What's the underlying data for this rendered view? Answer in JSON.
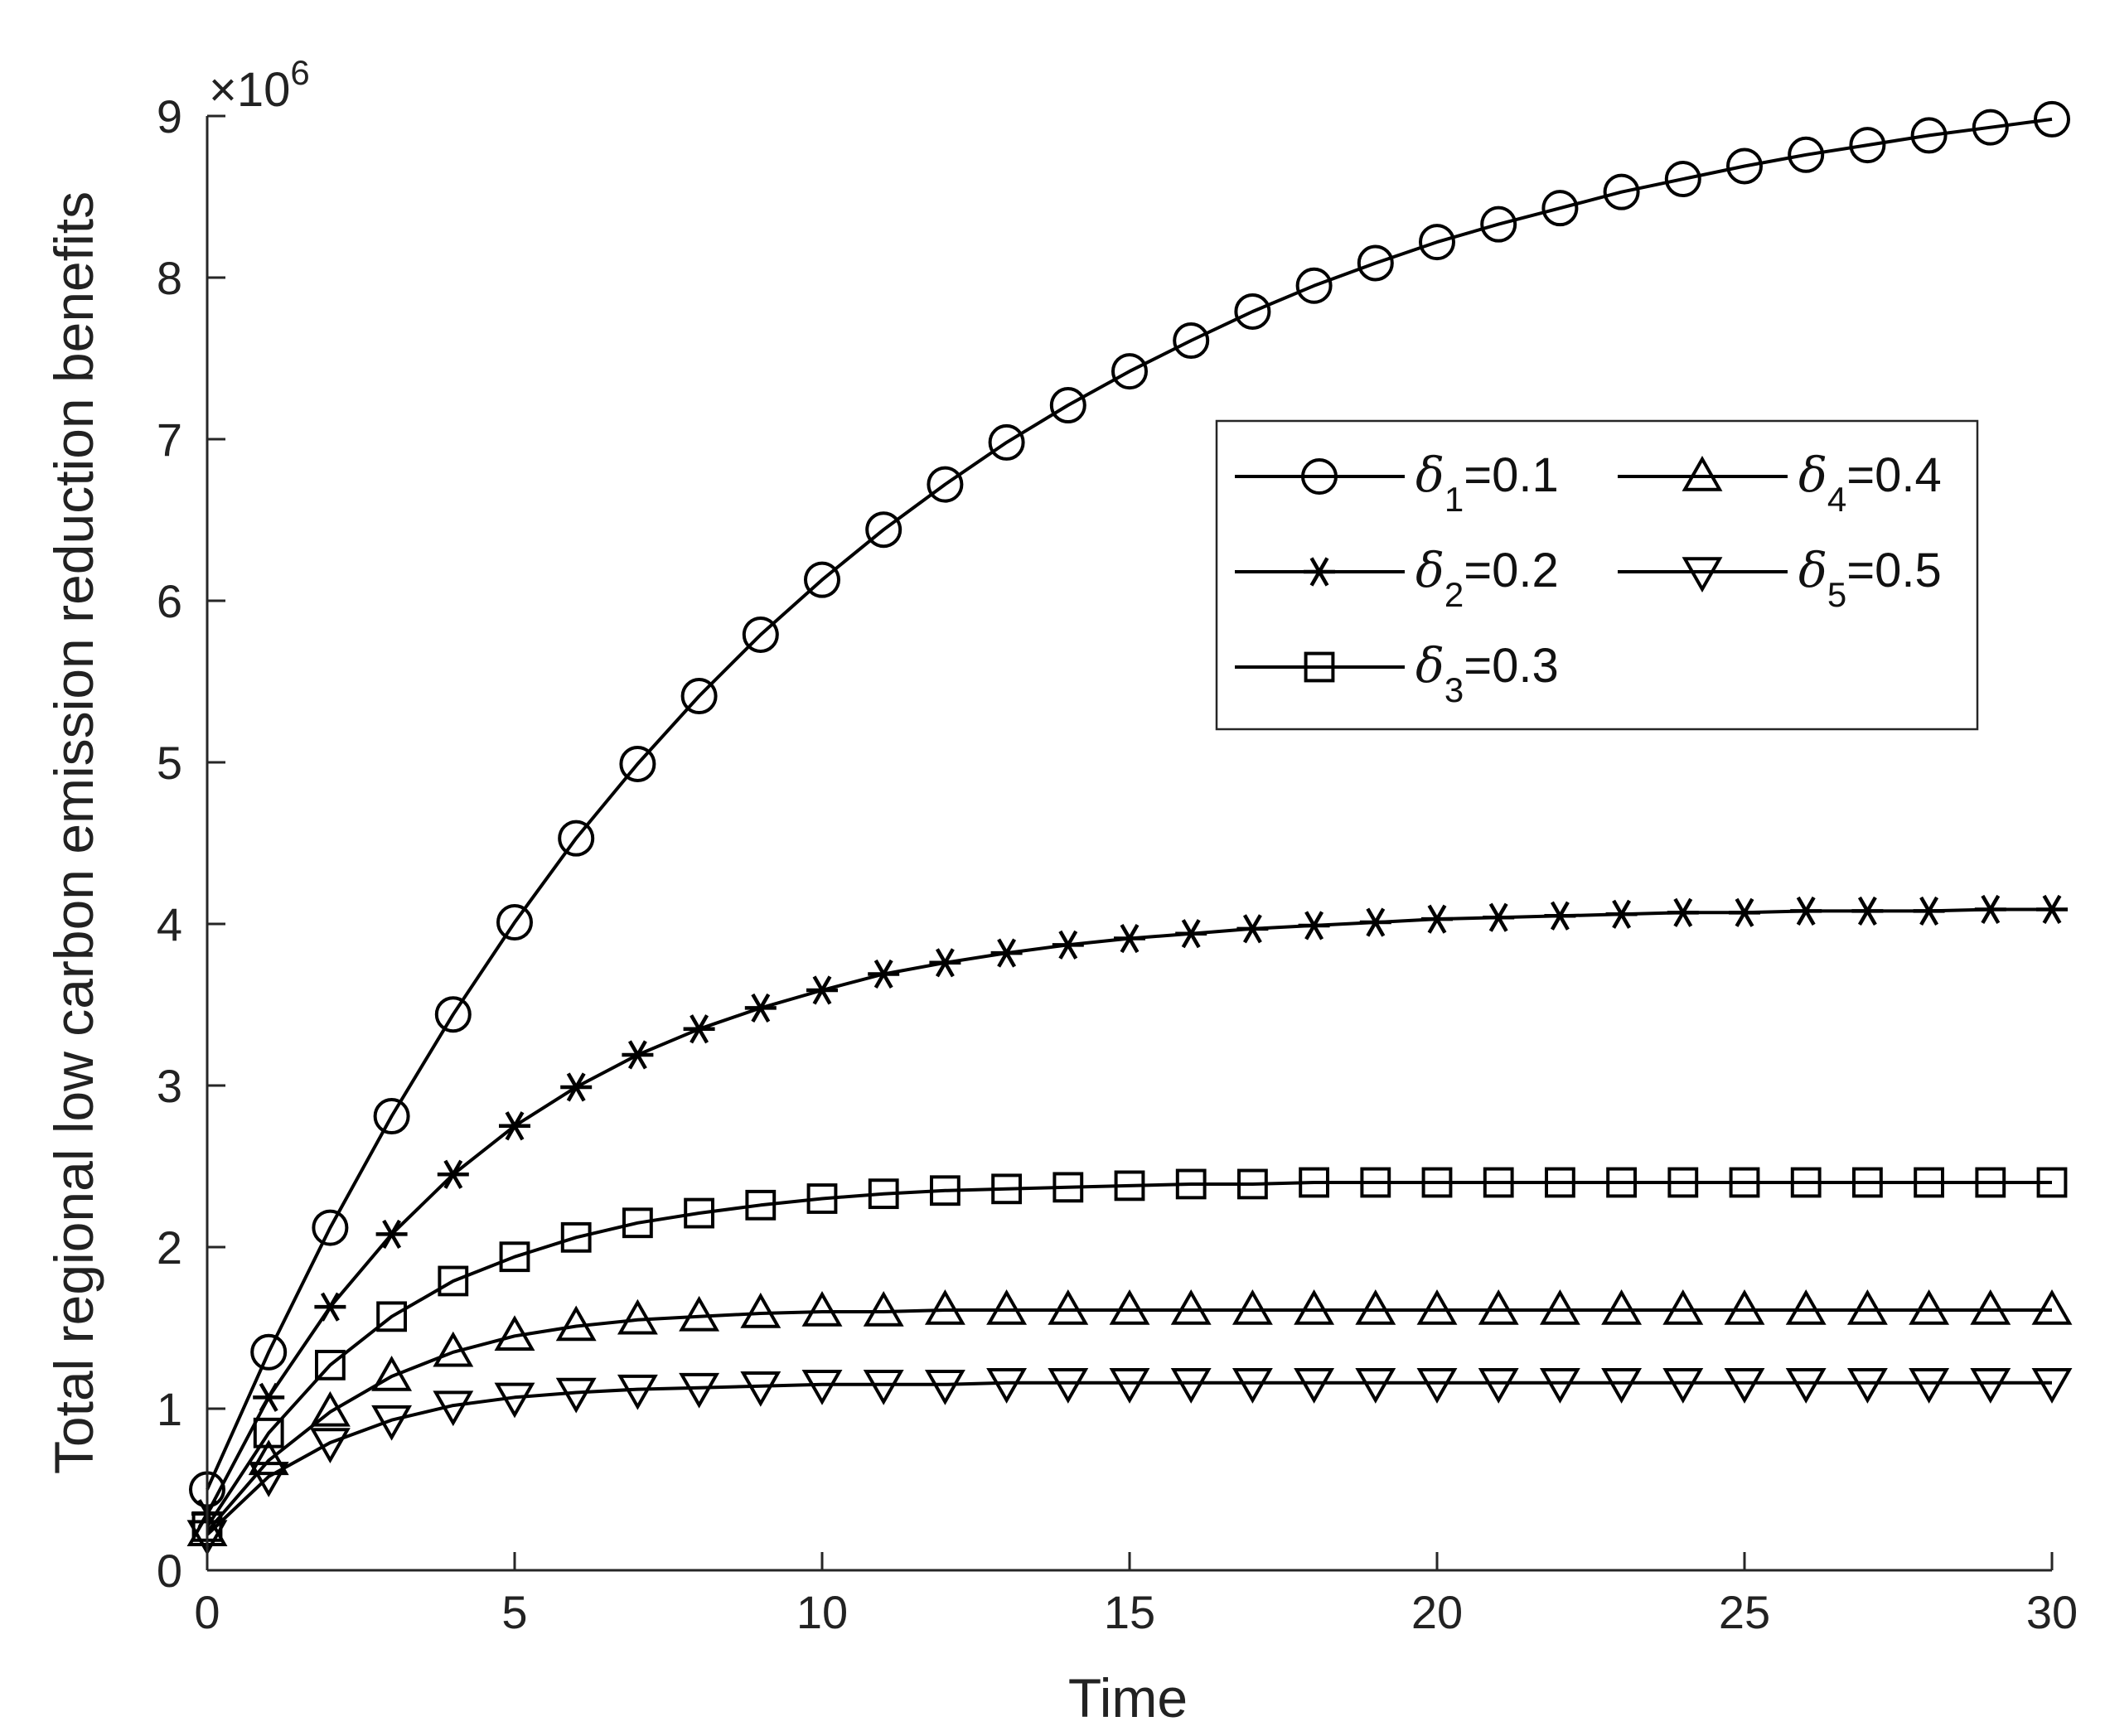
{
  "chart_data": {
    "type": "line",
    "title": "",
    "xlabel": "Time",
    "ylabel": "Total regional low carbon emission reduction benefits",
    "xlim": [
      0,
      30
    ],
    "ylim": [
      0,
      9
    ],
    "xticks": [
      0,
      5,
      10,
      15,
      20,
      25,
      30
    ],
    "yticks": [
      0,
      1,
      2,
      3,
      4,
      5,
      6,
      7,
      8,
      9
    ],
    "x_tick_labels": [
      "0",
      "5",
      "10",
      "15",
      "20",
      "25",
      "30"
    ],
    "y_tick_labels": [
      "0",
      "1",
      "2",
      "3",
      "4",
      "5",
      "6",
      "7",
      "8",
      "9"
    ],
    "y_multiplier": {
      "base": "×10",
      "exponent": "6"
    },
    "grid": false,
    "legend_position": "top-right",
    "x": [
      0,
      1,
      2,
      3,
      4,
      5,
      6,
      7,
      8,
      9,
      10,
      11,
      12,
      13,
      14,
      15,
      16,
      17,
      18,
      19,
      20,
      21,
      22,
      23,
      24,
      25,
      26,
      27,
      28,
      29,
      30
    ],
    "series": [
      {
        "name": "δ1=0.1",
        "symbol": "δ",
        "subscript": "1",
        "value_label": "=0.1",
        "marker": "circle",
        "values": [
          0.5,
          1.35,
          2.12,
          2.81,
          3.44,
          4.01,
          4.53,
          4.99,
          5.41,
          5.79,
          6.13,
          6.44,
          6.72,
          6.98,
          7.21,
          7.42,
          7.61,
          7.79,
          7.95,
          8.09,
          8.22,
          8.33,
          8.43,
          8.53,
          8.61,
          8.69,
          8.76,
          8.82,
          8.88,
          8.93,
          8.98
        ]
      },
      {
        "name": "δ2=0.2",
        "symbol": "δ",
        "subscript": "2",
        "value_label": "=0.2",
        "marker": "asterisk",
        "values": [
          0.35,
          1.07,
          1.63,
          2.08,
          2.45,
          2.75,
          2.99,
          3.19,
          3.35,
          3.48,
          3.59,
          3.69,
          3.76,
          3.82,
          3.87,
          3.91,
          3.94,
          3.97,
          3.99,
          4.01,
          4.03,
          4.04,
          4.05,
          4.06,
          4.07,
          4.07,
          4.08,
          4.08,
          4.08,
          4.09,
          4.09
        ]
      },
      {
        "name": "δ3=0.3",
        "symbol": "δ",
        "subscript": "3",
        "value_label": "=0.3",
        "marker": "square",
        "values": [
          0.27,
          0.85,
          1.27,
          1.57,
          1.79,
          1.94,
          2.06,
          2.15,
          2.21,
          2.26,
          2.3,
          2.33,
          2.35,
          2.36,
          2.37,
          2.38,
          2.39,
          2.39,
          2.4,
          2.4,
          2.4,
          2.4,
          2.4,
          2.4,
          2.4,
          2.4,
          2.4,
          2.4,
          2.4,
          2.4,
          2.4
        ]
      },
      {
        "name": "δ4=0.4",
        "symbol": "δ",
        "subscript": "4",
        "value_label": "=0.4",
        "marker": "triangle-up",
        "values": [
          0.24,
          0.68,
          0.98,
          1.2,
          1.35,
          1.45,
          1.51,
          1.55,
          1.57,
          1.59,
          1.6,
          1.6,
          1.61,
          1.61,
          1.61,
          1.61,
          1.61,
          1.61,
          1.61,
          1.61,
          1.61,
          1.61,
          1.61,
          1.61,
          1.61,
          1.61,
          1.61,
          1.61,
          1.61,
          1.61,
          1.61
        ]
      },
      {
        "name": "δ5=0.5",
        "symbol": "δ",
        "subscript": "5",
        "value_label": "=0.5",
        "marker": "triangle-down",
        "values": [
          0.22,
          0.58,
          0.79,
          0.93,
          1.02,
          1.07,
          1.1,
          1.12,
          1.13,
          1.14,
          1.15,
          1.15,
          1.15,
          1.16,
          1.16,
          1.16,
          1.16,
          1.16,
          1.16,
          1.16,
          1.16,
          1.16,
          1.16,
          1.16,
          1.16,
          1.16,
          1.16,
          1.16,
          1.16,
          1.16,
          1.16
        ]
      }
    ]
  }
}
